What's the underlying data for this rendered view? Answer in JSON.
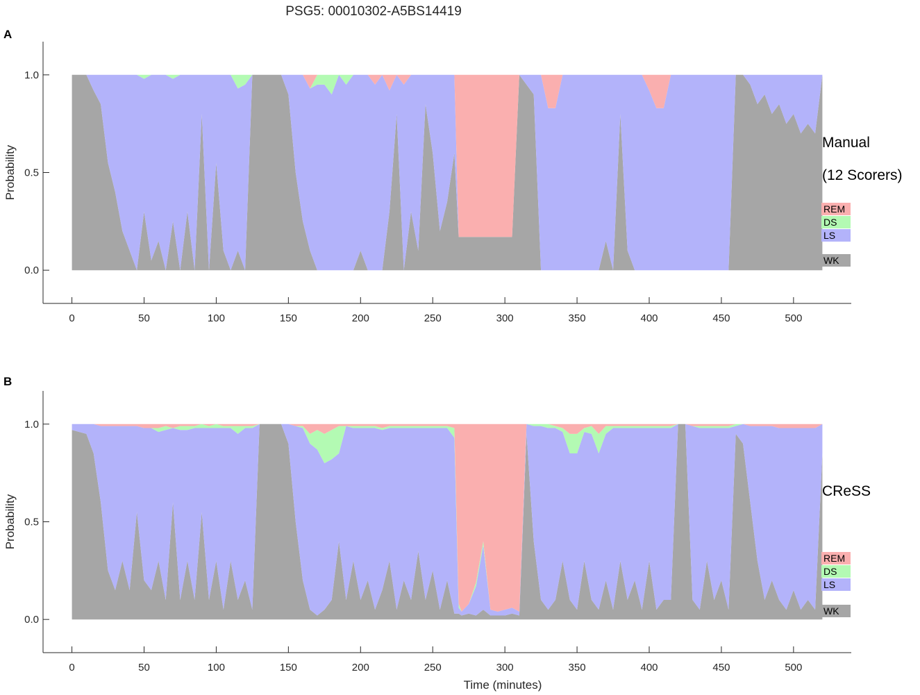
{
  "title": "PSG5: 00010302-A5BS14419",
  "colors": {
    "WK": "#a6a6a6",
    "LS": "#b3b3fa",
    "DS": "#b3fab3",
    "REM": "#faafaf"
  },
  "chart_data": [
    {
      "panel": "A",
      "type": "area",
      "stacked": true,
      "side_label_lines": [
        "Manual",
        "(12 Scorers)"
      ],
      "xlabel": "",
      "ylabel": "Probability",
      "xlim": [
        -20,
        540
      ],
      "ylim": [
        -0.17,
        1.17
      ],
      "xticks": [
        0,
        50,
        100,
        150,
        200,
        250,
        300,
        350,
        400,
        450,
        500
      ],
      "yticks": [
        0.0,
        0.5,
        1.0
      ],
      "ytick_labels": [
        "0.0",
        "0.5",
        "1.0"
      ],
      "legend": {
        "position": "right",
        "entries": [
          "REM",
          "DS",
          "LS",
          "WK"
        ]
      },
      "x": [
        0,
        10,
        15,
        20,
        25,
        30,
        35,
        40,
        45,
        50,
        55,
        60,
        65,
        70,
        75,
        80,
        85,
        90,
        95,
        100,
        105,
        110,
        115,
        120,
        125,
        130,
        135,
        140,
        145,
        150,
        155,
        160,
        165,
        170,
        175,
        180,
        185,
        190,
        195,
        200,
        205,
        210,
        215,
        220,
        225,
        230,
        235,
        240,
        245,
        250,
        255,
        260,
        265,
        268,
        270,
        275,
        280,
        285,
        290,
        295,
        300,
        305,
        310,
        315,
        320,
        325,
        330,
        335,
        340,
        345,
        350,
        355,
        360,
        365,
        370,
        375,
        380,
        385,
        390,
        395,
        400,
        405,
        410,
        415,
        420,
        425,
        430,
        435,
        440,
        445,
        450,
        455,
        460,
        465,
        470,
        475,
        480,
        485,
        490,
        495,
        500,
        505,
        510,
        515,
        520
      ],
      "series": [
        {
          "name": "WK",
          "values": [
            1.0,
            1.0,
            0.92,
            0.85,
            0.55,
            0.4,
            0.2,
            0.1,
            0.0,
            0.3,
            0.05,
            0.15,
            0.0,
            0.25,
            0.0,
            0.3,
            0.0,
            0.8,
            0.0,
            0.55,
            0.1,
            0.0,
            0.1,
            0.0,
            1.0,
            1.0,
            1.0,
            1.0,
            1.0,
            0.9,
            0.5,
            0.25,
            0.1,
            0.0,
            0.0,
            0.0,
            0.0,
            0.0,
            0.0,
            0.1,
            0.0,
            0.0,
            0.0,
            0.3,
            0.8,
            0.0,
            0.3,
            0.1,
            0.85,
            0.6,
            0.2,
            0.35,
            0.6,
            0.17,
            0.17,
            0.17,
            0.17,
            0.17,
            0.17,
            0.17,
            0.17,
            0.17,
            1.0,
            0.95,
            0.9,
            0.0,
            0.0,
            0.0,
            0.0,
            0.0,
            0.0,
            0.0,
            0.0,
            0.0,
            0.15,
            0.0,
            0.8,
            0.1,
            0.0,
            0.0,
            0.0,
            0.0,
            0.0,
            0.0,
            0.0,
            0.0,
            0.0,
            0.0,
            0.0,
            0.0,
            0.0,
            0.0,
            1.0,
            1.0,
            0.95,
            0.85,
            0.9,
            0.8,
            0.85,
            0.75,
            0.8,
            0.7,
            0.75,
            0.7,
            1.0
          ]
        },
        {
          "name": "LS",
          "values": [
            0.0,
            0.0,
            0.08,
            0.15,
            0.45,
            0.6,
            0.8,
            0.9,
            1.0,
            0.68,
            0.95,
            0.85,
            1.0,
            0.73,
            1.0,
            0.7,
            1.0,
            0.2,
            1.0,
            0.45,
            0.9,
            1.0,
            0.83,
            0.95,
            0.0,
            0.0,
            0.0,
            0.0,
            0.0,
            0.1,
            0.5,
            0.75,
            0.83,
            0.95,
            0.95,
            0.9,
            1.0,
            0.95,
            1.0,
            0.9,
            1.0,
            0.95,
            1.0,
            0.62,
            0.2,
            0.95,
            0.7,
            0.9,
            0.15,
            0.4,
            0.8,
            0.65,
            0.4,
            0.0,
            0.0,
            0.0,
            0.0,
            0.0,
            0.0,
            0.0,
            0.0,
            0.0,
            0.0,
            0.05,
            0.1,
            1.0,
            0.83,
            0.83,
            1.0,
            1.0,
            1.0,
            1.0,
            1.0,
            1.0,
            0.85,
            1.0,
            0.2,
            0.9,
            1.0,
            1.0,
            0.92,
            0.83,
            0.83,
            1.0,
            1.0,
            1.0,
            1.0,
            1.0,
            1.0,
            1.0,
            1.0,
            1.0,
            0.0,
            0.0,
            0.05,
            0.15,
            0.1,
            0.2,
            0.15,
            0.25,
            0.2,
            0.3,
            0.25,
            0.3,
            0.0
          ]
        },
        {
          "name": "DS",
          "values": [
            0.0,
            0.0,
            0.0,
            0.0,
            0.0,
            0.0,
            0.0,
            0.0,
            0.0,
            0.02,
            0.0,
            0.0,
            0.0,
            0.02,
            0.0,
            0.0,
            0.0,
            0.0,
            0.0,
            0.0,
            0.0,
            0.0,
            0.07,
            0.05,
            0.0,
            0.0,
            0.0,
            0.0,
            0.0,
            0.0,
            0.0,
            0.0,
            0.0,
            0.05,
            0.05,
            0.1,
            0.0,
            0.05,
            0.0,
            0.0,
            0.0,
            0.0,
            0.0,
            0.0,
            0.0,
            0.0,
            0.0,
            0.0,
            0.0,
            0.0,
            0.0,
            0.0,
            0.0,
            0.0,
            0.0,
            0.0,
            0.0,
            0.0,
            0.0,
            0.0,
            0.0,
            0.0,
            0.0,
            0.0,
            0.0,
            0.0,
            0.0,
            0.0,
            0.0,
            0.0,
            0.0,
            0.0,
            0.0,
            0.0,
            0.0,
            0.0,
            0.0,
            0.0,
            0.0,
            0.0,
            0.0,
            0.0,
            0.0,
            0.0,
            0.0,
            0.0,
            0.0,
            0.0,
            0.0,
            0.0,
            0.0,
            0.0,
            0.0,
            0.0,
            0.0,
            0.0,
            0.0,
            0.0,
            0.0,
            0.0,
            0.0,
            0.0,
            0.0,
            0.0,
            0.0
          ]
        },
        {
          "name": "REM",
          "values": [
            0.0,
            0.0,
            0.0,
            0.0,
            0.0,
            0.0,
            0.0,
            0.0,
            0.0,
            0.0,
            0.0,
            0.0,
            0.0,
            0.0,
            0.0,
            0.0,
            0.0,
            0.0,
            0.0,
            0.0,
            0.0,
            0.0,
            0.0,
            0.0,
            0.0,
            0.0,
            0.0,
            0.0,
            0.0,
            0.0,
            0.0,
            0.0,
            0.07,
            0.0,
            0.0,
            0.0,
            0.0,
            0.0,
            0.0,
            0.0,
            0.0,
            0.05,
            0.0,
            0.08,
            0.0,
            0.05,
            0.0,
            0.0,
            0.0,
            0.0,
            0.0,
            0.0,
            0.0,
            0.83,
            0.83,
            0.83,
            0.83,
            0.83,
            0.83,
            0.83,
            0.83,
            0.83,
            0.0,
            0.0,
            0.0,
            0.0,
            0.17,
            0.17,
            0.0,
            0.0,
            0.0,
            0.0,
            0.0,
            0.0,
            0.0,
            0.0,
            0.0,
            0.0,
            0.0,
            0.0,
            0.08,
            0.17,
            0.17,
            0.0,
            0.0,
            0.0,
            0.0,
            0.0,
            0.0,
            0.0,
            0.0,
            0.0,
            0.0,
            0.0,
            0.0,
            0.0,
            0.0,
            0.0,
            0.0,
            0.0,
            0.0,
            0.0,
            0.0,
            0.0,
            0.0
          ]
        }
      ]
    },
    {
      "panel": "B",
      "type": "area",
      "stacked": true,
      "side_label_lines": [
        "CReSS"
      ],
      "xlabel": "Time (minutes)",
      "ylabel": "Probability",
      "xlim": [
        -20,
        540
      ],
      "ylim": [
        -0.17,
        1.17
      ],
      "xticks": [
        0,
        50,
        100,
        150,
        200,
        250,
        300,
        350,
        400,
        450,
        500
      ],
      "yticks": [
        0.0,
        0.5,
        1.0
      ],
      "ytick_labels": [
        "0.0",
        "0.5",
        "1.0"
      ],
      "legend": {
        "position": "right",
        "entries": [
          "REM",
          "DS",
          "LS",
          "WK"
        ]
      },
      "x": [
        0,
        10,
        15,
        20,
        25,
        30,
        35,
        40,
        45,
        50,
        55,
        60,
        65,
        70,
        75,
        80,
        85,
        90,
        95,
        100,
        105,
        110,
        115,
        120,
        125,
        130,
        135,
        140,
        145,
        150,
        155,
        160,
        165,
        170,
        175,
        180,
        185,
        190,
        195,
        200,
        205,
        210,
        215,
        220,
        225,
        230,
        235,
        240,
        245,
        250,
        255,
        260,
        265,
        268,
        270,
        275,
        280,
        285,
        290,
        295,
        300,
        305,
        310,
        315,
        320,
        325,
        330,
        335,
        340,
        345,
        350,
        355,
        360,
        365,
        370,
        375,
        380,
        385,
        390,
        395,
        400,
        405,
        410,
        415,
        420,
        425,
        430,
        435,
        440,
        445,
        450,
        455,
        460,
        465,
        470,
        475,
        480,
        485,
        490,
        495,
        500,
        505,
        510,
        515,
        520
      ],
      "series": [
        {
          "name": "WK",
          "values": [
            0.97,
            0.95,
            0.85,
            0.6,
            0.25,
            0.15,
            0.3,
            0.15,
            0.55,
            0.2,
            0.15,
            0.3,
            0.1,
            0.6,
            0.1,
            0.3,
            0.1,
            0.55,
            0.1,
            0.3,
            0.05,
            0.3,
            0.1,
            0.2,
            0.05,
            1.0,
            1.0,
            1.0,
            1.0,
            0.9,
            0.5,
            0.2,
            0.05,
            0.02,
            0.05,
            0.1,
            0.4,
            0.1,
            0.3,
            0.1,
            0.2,
            0.05,
            0.15,
            0.3,
            0.05,
            0.2,
            0.1,
            0.35,
            0.1,
            0.25,
            0.05,
            0.2,
            0.03,
            0.03,
            0.02,
            0.03,
            0.02,
            0.05,
            0.02,
            0.02,
            0.02,
            0.03,
            0.02,
            0.95,
            0.4,
            0.1,
            0.05,
            0.1,
            0.3,
            0.1,
            0.05,
            0.3,
            0.1,
            0.05,
            0.2,
            0.05,
            0.3,
            0.1,
            0.2,
            0.05,
            0.3,
            0.05,
            0.1,
            0.1,
            1.0,
            1.0,
            0.1,
            0.05,
            0.3,
            0.1,
            0.2,
            0.05,
            0.95,
            0.9,
            0.6,
            0.3,
            0.1,
            0.2,
            0.1,
            0.05,
            0.15,
            0.05,
            0.1,
            0.05,
            0.85
          ]
        },
        {
          "name": "LS",
          "values": [
            0.03,
            0.05,
            0.15,
            0.39,
            0.74,
            0.84,
            0.69,
            0.84,
            0.44,
            0.78,
            0.83,
            0.66,
            0.87,
            0.38,
            0.87,
            0.67,
            0.88,
            0.43,
            0.88,
            0.68,
            0.93,
            0.68,
            0.85,
            0.78,
            0.93,
            0.0,
            0.0,
            0.0,
            0.0,
            0.1,
            0.49,
            0.78,
            0.85,
            0.85,
            0.75,
            0.72,
            0.45,
            0.89,
            0.68,
            0.88,
            0.78,
            0.93,
            0.82,
            0.68,
            0.93,
            0.78,
            0.88,
            0.63,
            0.88,
            0.73,
            0.93,
            0.78,
            0.9,
            0.03,
            0.02,
            0.05,
            0.15,
            0.33,
            0.03,
            0.02,
            0.03,
            0.03,
            0.02,
            0.05,
            0.59,
            0.89,
            0.93,
            0.88,
            0.66,
            0.75,
            0.8,
            0.66,
            0.85,
            0.8,
            0.75,
            0.93,
            0.68,
            0.88,
            0.78,
            0.93,
            0.68,
            0.93,
            0.88,
            0.88,
            0.0,
            0.0,
            0.89,
            0.93,
            0.68,
            0.88,
            0.78,
            0.93,
            0.04,
            0.1,
            0.39,
            0.69,
            0.89,
            0.79,
            0.88,
            0.93,
            0.83,
            0.93,
            0.88,
            0.93,
            0.15
          ]
        },
        {
          "name": "DS",
          "values": [
            0.0,
            0.0,
            0.0,
            0.0,
            0.0,
            0.0,
            0.0,
            0.0,
            0.0,
            0.0,
            0.0,
            0.02,
            0.02,
            0.0,
            0.02,
            0.02,
            0.01,
            0.02,
            0.01,
            0.02,
            0.01,
            0.01,
            0.04,
            0.01,
            0.01,
            0.0,
            0.0,
            0.0,
            0.0,
            0.0,
            0.0,
            0.01,
            0.05,
            0.1,
            0.15,
            0.15,
            0.14,
            0.0,
            0.01,
            0.01,
            0.01,
            0.01,
            0.01,
            0.01,
            0.01,
            0.01,
            0.01,
            0.01,
            0.01,
            0.01,
            0.01,
            0.01,
            0.05,
            0.02,
            0.0,
            0.0,
            0.02,
            0.02,
            0.0,
            0.0,
            0.0,
            0.0,
            0.0,
            0.0,
            0.01,
            0.01,
            0.02,
            0.01,
            0.02,
            0.1,
            0.1,
            0.02,
            0.04,
            0.1,
            0.04,
            0.01,
            0.01,
            0.01,
            0.01,
            0.01,
            0.01,
            0.01,
            0.01,
            0.01,
            0.0,
            0.0,
            0.0,
            0.01,
            0.01,
            0.01,
            0.01,
            0.01,
            0.01,
            0.0,
            0.0,
            0.0,
            0.0,
            0.0,
            0.0,
            0.0,
            0.0,
            0.0,
            0.0,
            0.0,
            0.0
          ]
        },
        {
          "name": "REM",
          "values": [
            0.0,
            0.0,
            0.0,
            0.01,
            0.01,
            0.01,
            0.01,
            0.01,
            0.01,
            0.02,
            0.02,
            0.02,
            0.01,
            0.02,
            0.01,
            0.01,
            0.01,
            0.0,
            0.01,
            0.0,
            0.01,
            0.01,
            0.01,
            0.01,
            0.01,
            0.0,
            0.0,
            0.0,
            0.0,
            0.0,
            0.01,
            0.01,
            0.05,
            0.03,
            0.05,
            0.03,
            0.01,
            0.01,
            0.01,
            0.01,
            0.01,
            0.01,
            0.02,
            0.01,
            0.01,
            0.01,
            0.01,
            0.01,
            0.01,
            0.01,
            0.01,
            0.01,
            0.02,
            0.92,
            0.96,
            0.92,
            0.81,
            0.6,
            0.95,
            0.96,
            0.95,
            0.94,
            0.96,
            0.0,
            0.0,
            0.0,
            0.0,
            0.01,
            0.02,
            0.05,
            0.05,
            0.02,
            0.01,
            0.05,
            0.01,
            0.01,
            0.01,
            0.01,
            0.01,
            0.01,
            0.01,
            0.01,
            0.01,
            0.01,
            0.0,
            0.0,
            0.01,
            0.01,
            0.01,
            0.01,
            0.01,
            0.01,
            0.0,
            0.0,
            0.01,
            0.01,
            0.01,
            0.01,
            0.02,
            0.02,
            0.02,
            0.02,
            0.02,
            0.02,
            0.0
          ]
        }
      ]
    }
  ]
}
